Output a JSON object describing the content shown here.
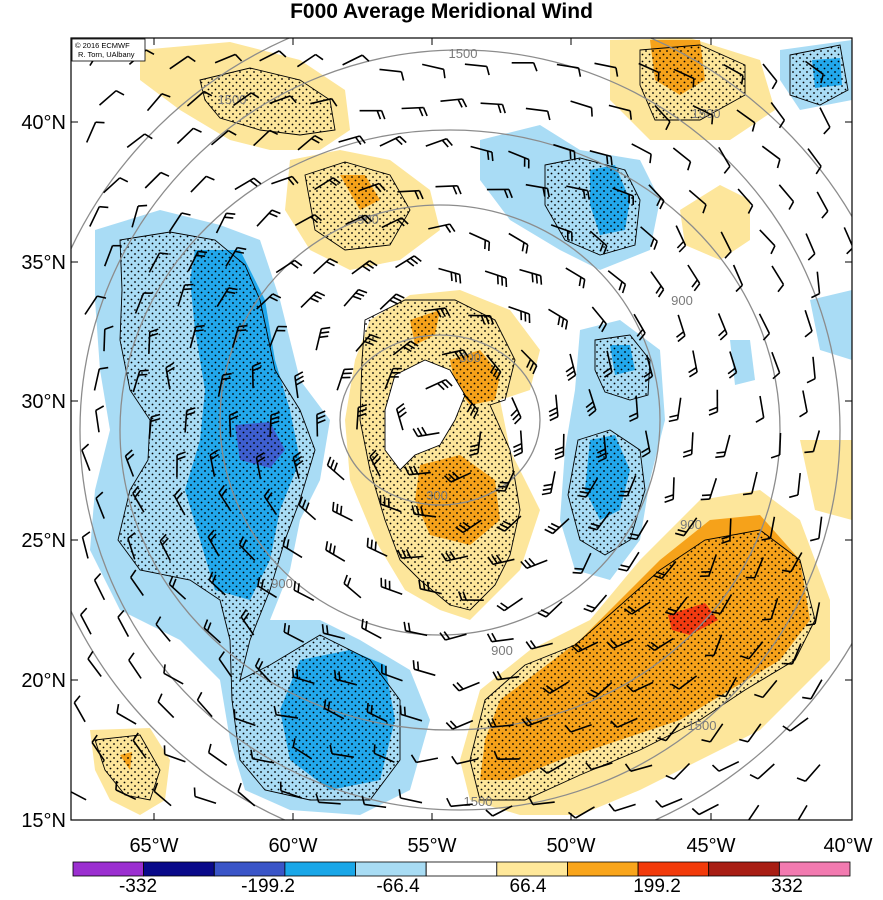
{
  "title": "F000 Average Meridional Wind",
  "credit": {
    "line1": "© 2016 ECMWF",
    "line2": "R. Torn, UAlbany"
  },
  "lat_labels": [
    "40°N",
    "35°N",
    "30°N",
    "25°N",
    "20°N",
    "15°N"
  ],
  "lon_labels": [
    "65°W",
    "60°W",
    "55°W",
    "50°W",
    "45°W",
    "40°W"
  ],
  "contour_labels": [
    "1500",
    "1500",
    "900",
    "900",
    "300",
    "300",
    "900",
    "900",
    "900",
    "1500",
    "1500",
    "1500"
  ],
  "colorbar": {
    "labels": [
      "-332",
      "-199.2",
      "-66.4",
      "66.4",
      "199.2",
      "332"
    ],
    "colors": [
      "#9b2fd0",
      "#0a0a8a",
      "#3a55c8",
      "#1aa7e8",
      "#a8dcf4",
      "#ffffff",
      "#ffe89a",
      "#f9a51b",
      "#f23a0a",
      "#a81e14",
      "#f27ab0"
    ]
  },
  "field_colors": {
    "neg_strong": "#1f1f9a",
    "neg_mid": "#3e5fd0",
    "neg": "#22a8ec",
    "neg_light": "#a9dcf5",
    "pos_light": "#fde69b",
    "pos": "#f6a21a",
    "pos_strong": "#f23a10",
    "contour": "#8c8c8c"
  }
}
